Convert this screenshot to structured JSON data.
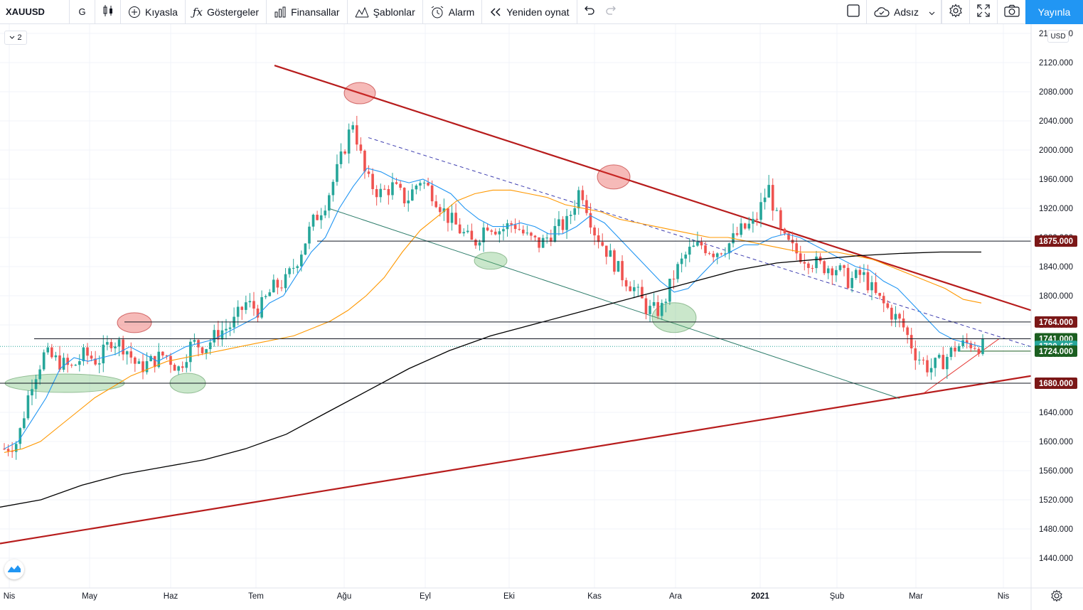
{
  "toolbar": {
    "symbol": "XAUUSD",
    "interval": "G",
    "compare_label": "Kıyasla",
    "indicators_label": "Göstergeler",
    "financials_label": "Finansallar",
    "templates_label": "Şablonlar",
    "alert_label": "Alarm",
    "replay_label": "Yeniden oynat",
    "layout_name": "Adsız",
    "publish_label": "Yayınla"
  },
  "legend_toggle": "2",
  "currency": "USD",
  "axis": {
    "price_ticks": [
      "2160.000",
      "2120.000",
      "2080.000",
      "2040.000",
      "2000.000",
      "1960.000",
      "1920.000",
      "1880.000",
      "1840.000",
      "1800.000",
      "1760.000",
      "1720.000",
      "1680.000",
      "1640.000",
      "1600.000",
      "1560.000",
      "1520.000",
      "1480.000",
      "1440.000"
    ],
    "time_labels": [
      "Nis",
      "May",
      "Haz",
      "Tem",
      "Ağu",
      "Eyl",
      "Eki",
      "Kas",
      "Ara",
      "2021",
      "Şub",
      "Mar",
      "Nis"
    ]
  },
  "price_badges": [
    {
      "label": "1875.000",
      "color": "#7b1717"
    },
    {
      "label": "1764.000",
      "color": "#7b1717"
    },
    {
      "label": "1741.000",
      "color": "#1b5e20"
    },
    {
      "label": "1730.495",
      "color": "#26a69a"
    },
    {
      "label": "1724.000",
      "color": "#1b5e20"
    },
    {
      "label": "1680.000",
      "color": "#7b1717"
    }
  ],
  "colors": {
    "up": "#26a69a",
    "down": "#ef5350",
    "ma20": "#2196f3",
    "ma50": "#ff9800",
    "ma200": "#000000",
    "trend": "#b71c1c",
    "channel": "#2e7d6b"
  },
  "chart_data": {
    "type": "candlestick",
    "symbol": "XAUUSD",
    "interval": "1D",
    "x_range": [
      "Nis",
      "Nis 2021"
    ],
    "ylim": [
      1410,
      2170
    ],
    "grid": true,
    "horizontal_levels": [
      1875,
      1764,
      1741,
      1724,
      1680
    ],
    "last_price": 1730.495,
    "price_path_weekly": [
      1590,
      1600,
      1680,
      1720,
      1710,
      1700,
      1720,
      1710,
      1740,
      1730,
      1700,
      1710,
      1720,
      1700,
      1735,
      1730,
      1750,
      1760,
      1790,
      1780,
      1810,
      1820,
      1855,
      1900,
      1930,
      1980,
      2040,
      1960,
      1940,
      1950,
      1930,
      1960,
      1940,
      1910,
      1890,
      1870,
      1900,
      1890,
      1900,
      1880,
      1870,
      1890,
      1900,
      1950,
      1890,
      1860,
      1830,
      1810,
      1780,
      1780,
      1830,
      1860,
      1870,
      1860,
      1870,
      1890,
      1900,
      1950,
      1880,
      1860,
      1850,
      1840,
      1840,
      1820,
      1830,
      1800,
      1780,
      1760,
      1720,
      1700,
      1710,
      1730,
      1735,
      1730
    ],
    "moving_averages": [
      {
        "name": "MA20",
        "path": [
          1590,
          1600,
          1630,
          1660,
          1700,
          1715,
          1710,
          1715,
          1720,
          1730,
          1720,
          1710,
          1720,
          1730,
          1735,
          1740,
          1750,
          1760,
          1770,
          1790,
          1800,
          1830,
          1860,
          1880,
          1920,
          1950,
          1975,
          1970,
          1960,
          1955,
          1960,
          1950,
          1940,
          1920,
          1905,
          1895,
          1895,
          1900,
          1895,
          1885,
          1885,
          1895,
          1910,
          1900,
          1880,
          1860,
          1840,
          1820,
          1805,
          1810,
          1830,
          1850,
          1860,
          1870,
          1870,
          1880,
          1885,
          1880,
          1870,
          1860,
          1850,
          1840,
          1835,
          1820,
          1810,
          1790,
          1770,
          1750,
          1740,
          1735,
          1730
        ]
      },
      {
        "name": "MA50",
        "path": [
          1585,
          1590,
          1600,
          1620,
          1640,
          1660,
          1675,
          1690,
          1700,
          1710,
          1715,
          1720,
          1725,
          1730,
          1735,
          1740,
          1745,
          1755,
          1765,
          1780,
          1800,
          1825,
          1860,
          1890,
          1910,
          1930,
          1940,
          1945,
          1945,
          1940,
          1935,
          1925,
          1920,
          1915,
          1905,
          1900,
          1895,
          1890,
          1885,
          1880,
          1880,
          1875,
          1870,
          1865,
          1860,
          1860,
          1860,
          1855,
          1850,
          1840,
          1830,
          1820,
          1810,
          1795,
          1790
        ]
      },
      {
        "name": "MA200",
        "path": [
          1510,
          1520,
          1540,
          1555,
          1565,
          1575,
          1590,
          1610,
          1640,
          1670,
          1700,
          1725,
          1745,
          1760,
          1775,
          1790,
          1805,
          1820,
          1835,
          1845,
          1850,
          1855,
          1858,
          1860,
          1860
        ]
      }
    ],
    "trendlines": [
      {
        "name": "resistance",
        "from": [
          0.0,
          2110
        ],
        "to": [
          1.0,
          1780
        ]
      },
      {
        "name": "support",
        "from": [
          0.0,
          1460
        ],
        "to": [
          1.0,
          1690
        ]
      }
    ]
  }
}
